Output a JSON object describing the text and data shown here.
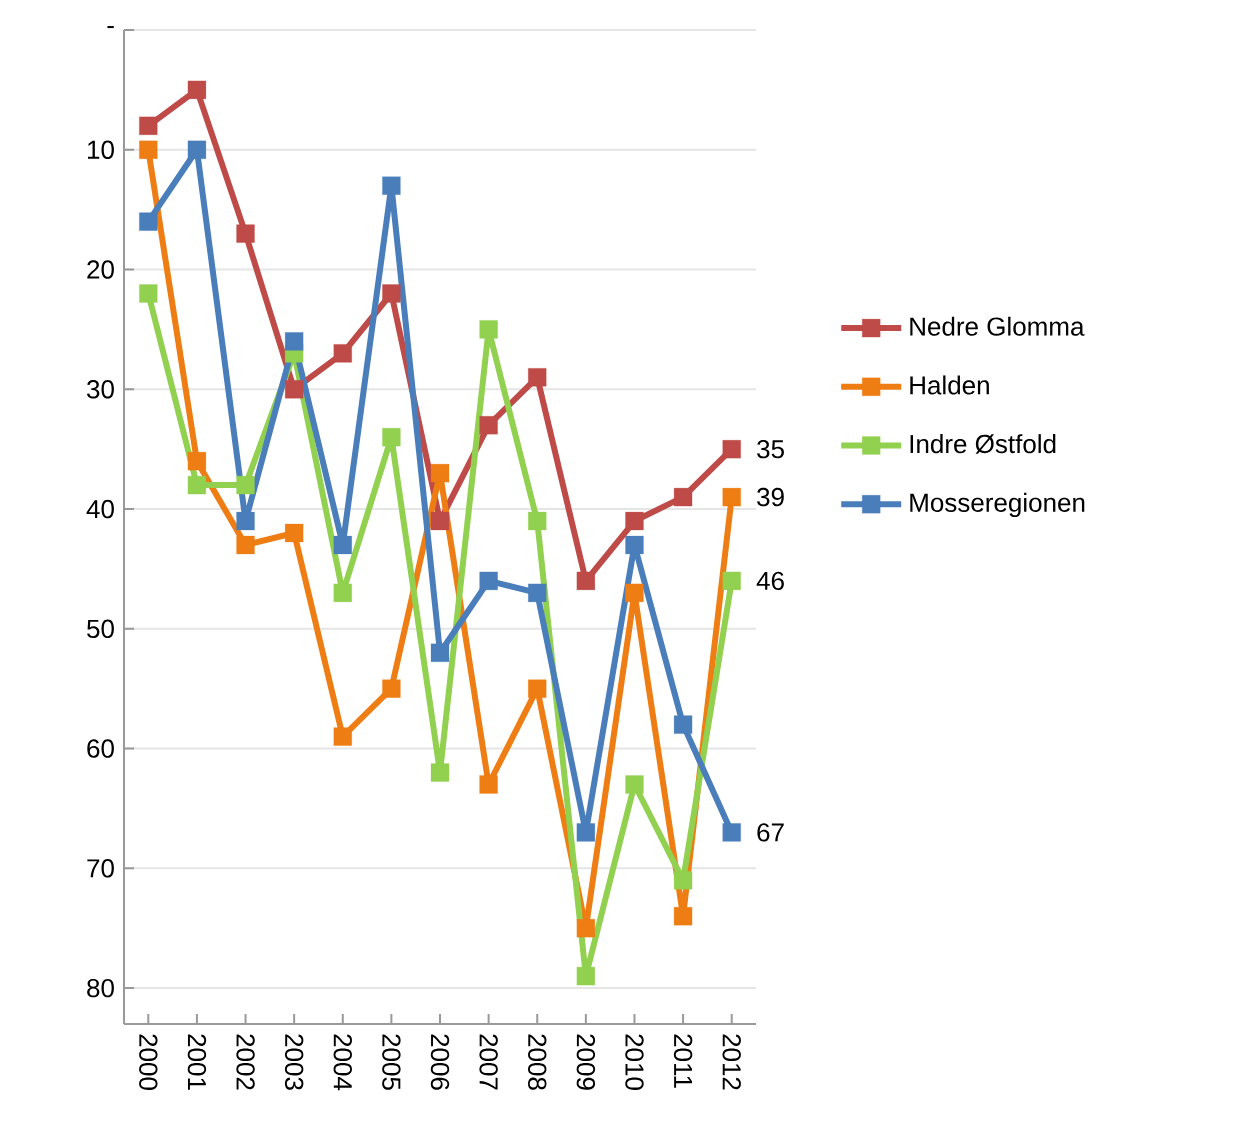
{
  "chart_data": {
    "type": "line",
    "categories": [
      "2000",
      "2001",
      "2002",
      "2003",
      "2004",
      "2005",
      "2006",
      "2007",
      "2008",
      "2009",
      "2010",
      "2011",
      "2012"
    ],
    "ylim": [
      83,
      0
    ],
    "yticks": [
      {
        "value": 0,
        "label": "-"
      },
      10,
      20,
      30,
      40,
      50,
      60,
      70,
      80
    ],
    "grid": "y",
    "legend": "right",
    "marker": "square",
    "series": [
      {
        "name": "Nedre Glomma",
        "color": "#be4b48",
        "values": [
          8,
          5,
          17,
          30,
          27,
          22,
          41,
          33,
          29,
          46,
          41,
          39,
          35
        ],
        "value_labels": [
          null,
          null,
          null,
          null,
          null,
          null,
          null,
          null,
          null,
          null,
          null,
          null,
          "35"
        ]
      },
      {
        "name": "Halden",
        "color": "#ee7d13",
        "values": [
          10,
          36,
          43,
          42,
          59,
          55,
          37,
          63,
          55,
          75,
          47,
          74,
          39
        ],
        "value_labels": [
          null,
          null,
          null,
          null,
          null,
          null,
          null,
          null,
          null,
          null,
          null,
          null,
          "39"
        ]
      },
      {
        "name": "Indre Østfold",
        "color": "#92d050",
        "values": [
          22,
          38,
          38,
          27,
          47,
          34,
          62,
          25,
          41,
          79,
          63,
          71,
          46
        ],
        "value_labels": [
          null,
          null,
          null,
          null,
          null,
          null,
          null,
          null,
          null,
          null,
          null,
          null,
          "46"
        ]
      },
      {
        "name": "Mosseregionen",
        "color": "#4a7ebb",
        "values": [
          16,
          10,
          41,
          26,
          43,
          13,
          52,
          46,
          47,
          67,
          43,
          58,
          67
        ],
        "value_labels": [
          null,
          null,
          null,
          null,
          null,
          null,
          null,
          null,
          null,
          null,
          null,
          null,
          "67"
        ]
      }
    ]
  }
}
